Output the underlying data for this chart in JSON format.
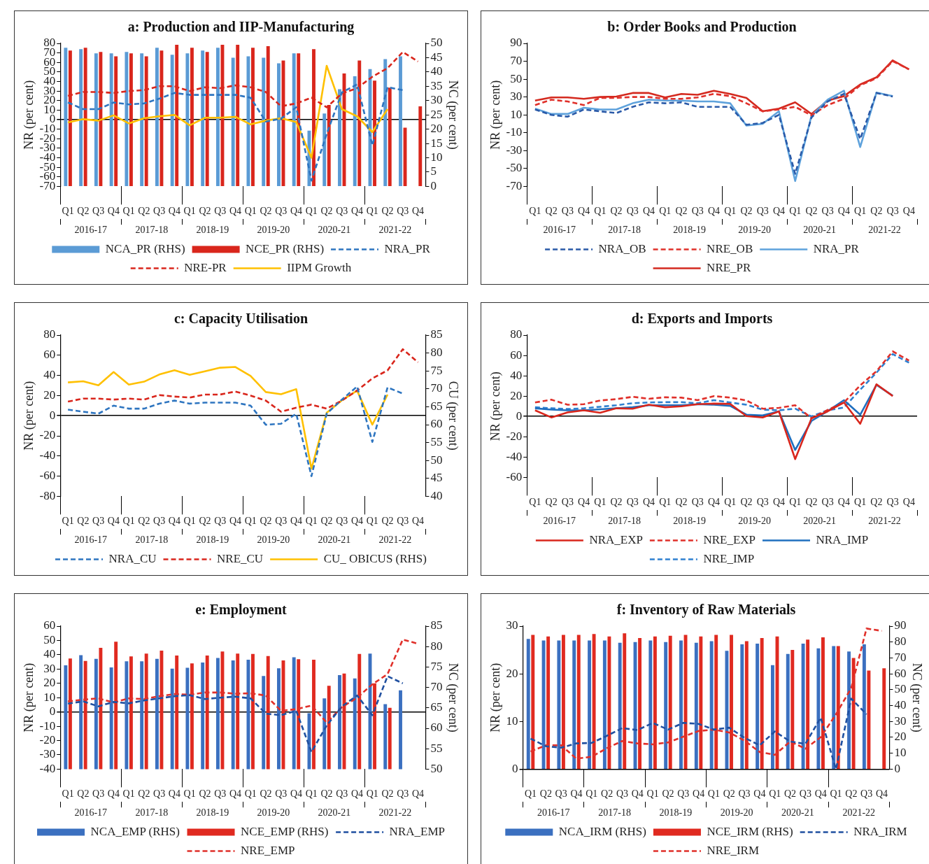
{
  "chart_data": [
    {
      "type": "bar",
      "title": "a: Production and IIP-Manufacturing",
      "ylabel": "NR (per cent)",
      "y2label": "NC (per cent)",
      "legend": "bottom",
      "categories": [
        "Q1",
        "Q2",
        "Q3",
        "Q4",
        "Q1",
        "Q2",
        "Q3",
        "Q4",
        "Q1",
        "Q2",
        "Q3",
        "Q4",
        "Q1",
        "Q2",
        "Q3",
        "Q4",
        "Q1",
        "Q2",
        "Q3",
        "Q4",
        "Q1",
        "Q2",
        "Q3",
        "Q4"
      ],
      "annotations": [
        "2016-17",
        "2017-18",
        "2018-19",
        "2019-20",
        "2020-21",
        "2021-22"
      ],
      "ylim": [
        -70,
        80
      ],
      "yticks": [
        -70,
        -60,
        -50,
        -40,
        -30,
        -20,
        -10,
        0,
        10,
        20,
        30,
        40,
        50,
        60,
        70,
        80
      ],
      "y2lim": [
        0,
        50
      ],
      "y2ticks": [
        0,
        5,
        10,
        15,
        20,
        25,
        30,
        35,
        40,
        45,
        50
      ],
      "series": [
        {
          "name": "NCA_PR (RHS)",
          "type": "bar",
          "axis": "y2",
          "color": "#5b9bd5",
          "values": [
            48.5,
            48,
            46.5,
            46.5,
            47,
            46.5,
            48.5,
            46,
            46.5,
            47.5,
            48.5,
            45,
            45.5,
            45,
            43,
            46.5,
            19.5,
            25.5,
            34,
            38.5,
            41,
            44.5,
            45.5,
            null
          ]
        },
        {
          "name": "NCE_PR (RHS)",
          "type": "bar",
          "axis": "y2",
          "color": "#d9261c",
          "values": [
            47.5,
            48.5,
            47,
            45.5,
            46.5,
            45.5,
            47.5,
            49.5,
            48.5,
            47,
            49.5,
            49.5,
            48.5,
            49,
            44,
            46.5,
            48,
            28.5,
            39.5,
            44,
            37,
            34.5,
            20.5,
            28
          ]
        },
        {
          "name": "NRA_PR",
          "type": "line",
          "line_style": "dashed",
          "color": "#2e75c0",
          "values": [
            18,
            11,
            11,
            18,
            16,
            17,
            22,
            28,
            26,
            26,
            26,
            26,
            23,
            -2,
            1,
            13,
            -64,
            -15,
            28.5,
            37,
            -27,
            34,
            31,
            null
          ]
        },
        {
          "name": "NRE-PR",
          "type": "line",
          "line_style": "dashed",
          "color": "#d9261c",
          "values": [
            25,
            29,
            29,
            28,
            30,
            31,
            35,
            35,
            30,
            34,
            33,
            36,
            34,
            29,
            14,
            17,
            23,
            13,
            27.5,
            33,
            45,
            54,
            71,
            61
          ]
        },
        {
          "name": "IIPM Growth",
          "type": "line",
          "line_style": "solid",
          "color": "#ffc000",
          "values": [
            -3,
            0.5,
            -1,
            4.5,
            -4,
            1.5,
            3.5,
            5,
            -6,
            2,
            2,
            3,
            -5,
            -1,
            1.5,
            -2.5,
            -40,
            56.5,
            11,
            3.5,
            -13,
            11,
            null,
            null
          ]
        }
      ]
    },
    {
      "type": "line",
      "title": "b: Order Books and Production",
      "ylabel": "NR (per cent)",
      "legend": "bottom",
      "categories": [
        "Q1",
        "Q2",
        "Q3",
        "Q4",
        "Q1",
        "Q2",
        "Q3",
        "Q4",
        "Q1",
        "Q2",
        "Q3",
        "Q4",
        "Q1",
        "Q2",
        "Q3",
        "Q4",
        "Q1",
        "Q2",
        "Q3",
        "Q4",
        "Q1",
        "Q2",
        "Q3",
        "Q4"
      ],
      "annotations": [
        "2016-17",
        "2017-18",
        "2018-19",
        "2019-20",
        "2020-21",
        "2021-22"
      ],
      "ylim": [
        -70,
        90
      ],
      "yticks": [
        -70,
        -50,
        -30,
        -10,
        10,
        30,
        50,
        70,
        90
      ],
      "series": [
        {
          "name": "NRA_OB",
          "line_style": "dashed",
          "color": "#2a5aa8",
          "values": [
            16,
            10,
            8,
            16,
            14,
            12,
            19,
            24,
            23,
            24,
            19,
            19,
            19,
            -1,
            1,
            10,
            -56,
            7,
            25,
            33.5,
            -17,
            34.5,
            30.5,
            null
          ]
        },
        {
          "name": "NRE_OB",
          "line_style": "dashed",
          "color": "#e0302a",
          "values": [
            21,
            27,
            25,
            21,
            29,
            29,
            30,
            30,
            28,
            28,
            29.5,
            33.5,
            31,
            23,
            14,
            16,
            19,
            9.5,
            21,
            28,
            43,
            51,
            70,
            61
          ]
        },
        {
          "name": "NRA_PR",
          "line_style": "solid",
          "color": "#5ea2dc",
          "values": [
            17,
            11,
            11,
            18,
            16,
            16,
            23,
            27,
            26,
            26,
            25,
            25,
            23,
            -2,
            0,
            14,
            -64,
            9,
            27,
            37,
            -26,
            35,
            31,
            null
          ]
        },
        {
          "name": "NRE_PR",
          "line_style": "solid",
          "color": "#d42a1f",
          "values": [
            26,
            29.5,
            29.5,
            28,
            30,
            30.5,
            34.5,
            34.5,
            29.5,
            33.5,
            32.5,
            37,
            33.5,
            29,
            14,
            17,
            24,
            11,
            26,
            31,
            44,
            52,
            71,
            61
          ]
        }
      ]
    },
    {
      "type": "line",
      "title": "c: Capacity Utilisation",
      "ylabel": "NR (per cent)",
      "y2label": "CU (per cent)",
      "legend": "bottom",
      "categories": [
        "Q1",
        "Q2",
        "Q3",
        "Q4",
        "Q1",
        "Q2",
        "Q3",
        "Q4",
        "Q1",
        "Q2",
        "Q3",
        "Q4",
        "Q1",
        "Q2",
        "Q3",
        "Q4",
        "Q1",
        "Q2",
        "Q3",
        "Q4",
        "Q1",
        "Q2",
        "Q3",
        "Q4"
      ],
      "annotations": [
        "2016-17",
        "2017-18",
        "2018-19",
        "2019-20",
        "2020-21",
        "2021-22"
      ],
      "ylim": [
        -80,
        80
      ],
      "yticks": [
        -80,
        -60,
        -40,
        -20,
        0,
        20,
        40,
        60,
        80
      ],
      "y2lim": [
        40,
        85
      ],
      "y2ticks": [
        40,
        45,
        50,
        55,
        60,
        65,
        70,
        75,
        80,
        85
      ],
      "series": [
        {
          "name": "NRA_CU",
          "line_style": "dashed",
          "color": "#2e75c0",
          "values": [
            6,
            4,
            2,
            10,
            7,
            7,
            12,
            15,
            12,
            13,
            13,
            13,
            10,
            -9,
            -8,
            2,
            -60,
            2,
            16,
            29,
            -26,
            28,
            22,
            null
          ]
        },
        {
          "name": "NRE_CU",
          "line_style": "dashed",
          "color": "#d9261c",
          "values": [
            14,
            17,
            17,
            16,
            17,
            16,
            20.5,
            19,
            18,
            21,
            21,
            24,
            20,
            15,
            4,
            8,
            11,
            7,
            15,
            25,
            37,
            45,
            66,
            53
          ]
        },
        {
          "name": "CU_ OBICUS (RHS)",
          "line_style": "solid",
          "axis": "y2",
          "color": "#ffc000",
          "values": [
            71.8,
            72.1,
            71,
            74.7,
            71.2,
            72,
            74,
            75.2,
            73.9,
            74.9,
            75.9,
            76.1,
            73.6,
            69.1,
            68.5,
            69.9,
            47.7,
            63.3,
            66.8,
            69.5,
            60,
            68.4,
            null,
            null
          ]
        }
      ]
    },
    {
      "type": "line",
      "title": "d: Exports and Imports",
      "ylabel": "NR (per cent)",
      "legend": "bottom",
      "categories": [
        "Q1",
        "Q2",
        "Q3",
        "Q4",
        "Q1",
        "Q2",
        "Q3",
        "Q4",
        "Q1",
        "Q2",
        "Q3",
        "Q4",
        "Q1",
        "Q2",
        "Q3",
        "Q4",
        "Q1",
        "Q2",
        "Q3",
        "Q4",
        "Q1",
        "Q2",
        "Q3",
        "Q4"
      ],
      "annotations": [
        "2016-17",
        "2017-18",
        "2018-19",
        "2019-20",
        "2020-21",
        "2021-22"
      ],
      "ylim": [
        -60,
        80
      ],
      "yticks": [
        -60,
        -40,
        -20,
        0,
        20,
        40,
        60,
        80
      ],
      "series": [
        {
          "name": "NRA_EXP",
          "line_style": "solid",
          "color": "#d9261c",
          "values": [
            6,
            -1,
            4,
            6,
            3.6,
            8,
            7.6,
            11.5,
            9,
            10,
            12,
            12.6,
            12.3,
            0.3,
            -1,
            5,
            -42,
            -2,
            5,
            13.7,
            -7.3,
            31.6,
            20,
            null
          ]
        },
        {
          "name": "NRE_EXP",
          "line_style": "dashed",
          "color": "#e0302a",
          "values": [
            13.7,
            16.5,
            11.5,
            12,
            15.7,
            17,
            19.3,
            17.4,
            18.8,
            18.5,
            16,
            20,
            18.5,
            15.7,
            7.6,
            8.4,
            11,
            -1.7,
            6.4,
            13.7,
            30.5,
            44.5,
            64,
            55
          ]
        },
        {
          "name": "NRA_IMP",
          "line_style": "solid",
          "color": "#1f6fbf",
          "values": [
            8,
            6.7,
            6,
            6,
            7,
            8,
            9,
            11,
            11,
            11,
            12,
            11.5,
            10.4,
            1.7,
            1,
            5,
            -33,
            -4.5,
            5.3,
            16,
            1.7,
            31,
            20.4,
            null
          ]
        },
        {
          "name": "NRE_IMP",
          "line_style": "dashed",
          "color": "#2f80d0",
          "values": [
            9,
            8,
            7.3,
            8,
            9.5,
            11,
            13,
            13.7,
            14,
            14,
            13,
            16,
            13.7,
            11.5,
            6.7,
            6,
            7.6,
            0,
            6,
            8.7,
            26.3,
            43,
            61.3,
            52.9
          ]
        }
      ]
    },
    {
      "type": "bar",
      "title": "e: Employment",
      "ylabel": "NR (per cent)",
      "y2label": "NC (per cent)",
      "legend": "bottom",
      "categories": [
        "Q1",
        "Q2",
        "Q3",
        "Q4",
        "Q1",
        "Q2",
        "Q3",
        "Q4",
        "Q1",
        "Q2",
        "Q3",
        "Q4",
        "Q1",
        "Q2",
        "Q3",
        "Q4",
        "Q1",
        "Q2",
        "Q3",
        "Q4",
        "Q1",
        "Q2",
        "Q3",
        "Q4"
      ],
      "annotations": [
        "2016-17",
        "2017-18",
        "2018-19",
        "2019-20",
        "2020-21",
        "2021-22"
      ],
      "ylim": [
        -40,
        60
      ],
      "yticks": [
        -40,
        -30,
        -20,
        -10,
        0,
        10,
        20,
        30,
        40,
        50,
        60
      ],
      "y2lim": [
        50,
        85
      ],
      "y2ticks": [
        50,
        55,
        60,
        65,
        70,
        75,
        80,
        85
      ],
      "series": [
        {
          "name": "NCA_EMP (RHS)",
          "type": "bar",
          "axis": "y2",
          "color": "#3b70c0",
          "values": [
            75.4,
            77.9,
            77,
            74.9,
            76.4,
            76.4,
            77,
            74.6,
            74.8,
            76.1,
            77.2,
            76.6,
            76.8,
            72.8,
            74.7,
            77.4,
            63.7,
            67.3,
            73,
            72.2,
            78.3,
            65.9,
            69.3,
            null
          ]
        },
        {
          "name": "NCE_EMP (RHS)",
          "type": "bar",
          "axis": "y2",
          "color": "#e02a20",
          "values": [
            77.1,
            76.5,
            79.7,
            81.2,
            77.6,
            78.3,
            79,
            77.8,
            75.9,
            77.8,
            78.8,
            78.3,
            78.2,
            77.7,
            76.6,
            76.9,
            76.8,
            70.4,
            73.4,
            78.2,
            71,
            65,
            null,
            null
          ]
        },
        {
          "name": "NRA_EMP",
          "type": "line",
          "line_style": "dashed",
          "color": "#2050a0",
          "values": [
            5.8,
            7.4,
            3.9,
            7,
            6,
            8,
            9.5,
            11,
            11.7,
            9,
            10,
            10.7,
            9.5,
            -1.2,
            -2.3,
            0.8,
            -28,
            -9.5,
            3.9,
            11.5,
            -2.3,
            25,
            20,
            null
          ]
        },
        {
          "name": "NRE_EMP",
          "type": "line",
          "line_style": "dashed",
          "color": "#e0302a",
          "values": [
            7.4,
            8.6,
            9.5,
            6.6,
            9.5,
            9,
            11,
            12.5,
            12,
            13.6,
            13.6,
            12.8,
            13,
            11.5,
            0.8,
            1.9,
            4.5,
            -7.4,
            3.3,
            10,
            19.3,
            26.5,
            50.6,
            47.7
          ]
        }
      ]
    },
    {
      "type": "bar",
      "title": "f: Inventory of Raw Materials",
      "ylabel": "NR (per cent)",
      "y2label": "NC (per cent)",
      "legend": "bottom",
      "categories": [
        "Q1",
        "Q2",
        "Q3",
        "Q4",
        "Q1",
        "Q2",
        "Q3",
        "Q4",
        "Q1",
        "Q2",
        "Q3",
        "Q4",
        "Q1",
        "Q2",
        "Q3",
        "Q4",
        "Q1",
        "Q2",
        "Q3",
        "Q4",
        "Q1",
        "Q2",
        "Q3",
        "Q4"
      ],
      "annotations": [
        "2016-17",
        "2017-18",
        "2018-19",
        "2019-20",
        "2020-21",
        "2021-22"
      ],
      "ylim": [
        0,
        30
      ],
      "yticks": [
        0,
        10,
        20,
        30
      ],
      "y2lim": [
        0,
        90
      ],
      "y2ticks": [
        0,
        10,
        20,
        30,
        40,
        50,
        60,
        70,
        80,
        90
      ],
      "series": [
        {
          "name": "NCA_IRM (RHS)",
          "type": "bar",
          "axis": "y2",
          "color": "#3b70c0",
          "values": [
            82,
            81,
            81,
            81,
            81,
            81,
            79.5,
            80,
            81,
            80,
            81,
            79.5,
            80.5,
            74.5,
            78.5,
            79,
            65.5,
            72.5,
            79,
            76,
            77.5,
            74,
            78.5,
            null
          ]
        },
        {
          "name": "NCE_IRM (RHS)",
          "type": "bar",
          "axis": "y2",
          "color": "#e02a20",
          "values": [
            84.5,
            83.5,
            84.5,
            84.5,
            85,
            83.5,
            85.5,
            82.5,
            83.5,
            84,
            84.5,
            83.5,
            84.5,
            84.5,
            80.5,
            82.5,
            83.5,
            75,
            81.5,
            83,
            77.5,
            70,
            62,
            63.5
          ]
        },
        {
          "name": "NRA_IRM",
          "type": "line",
          "line_style": "dashed",
          "color": "#2050a0",
          "values": [
            6.4,
            4.8,
            4.5,
            5.4,
            5.5,
            7,
            8.6,
            8.2,
            9.7,
            8.3,
            9.7,
            9.5,
            8.3,
            8.7,
            6.6,
            5,
            7.9,
            5.8,
            5.3,
            10.8,
            0,
            14.8,
            11.5,
            null
          ]
        },
        {
          "name": "NRE_IRM",
          "type": "line",
          "line_style": "dashed",
          "color": "#e0302a",
          "values": [
            3.7,
            5,
            5,
            2.2,
            2.6,
            4.4,
            5.9,
            5.4,
            5.2,
            5.6,
            6.8,
            8,
            8.3,
            7.7,
            6,
            3.6,
            3,
            5.8,
            4.3,
            6.7,
            11.5,
            17,
            29.5,
            29
          ]
        }
      ]
    }
  ]
}
